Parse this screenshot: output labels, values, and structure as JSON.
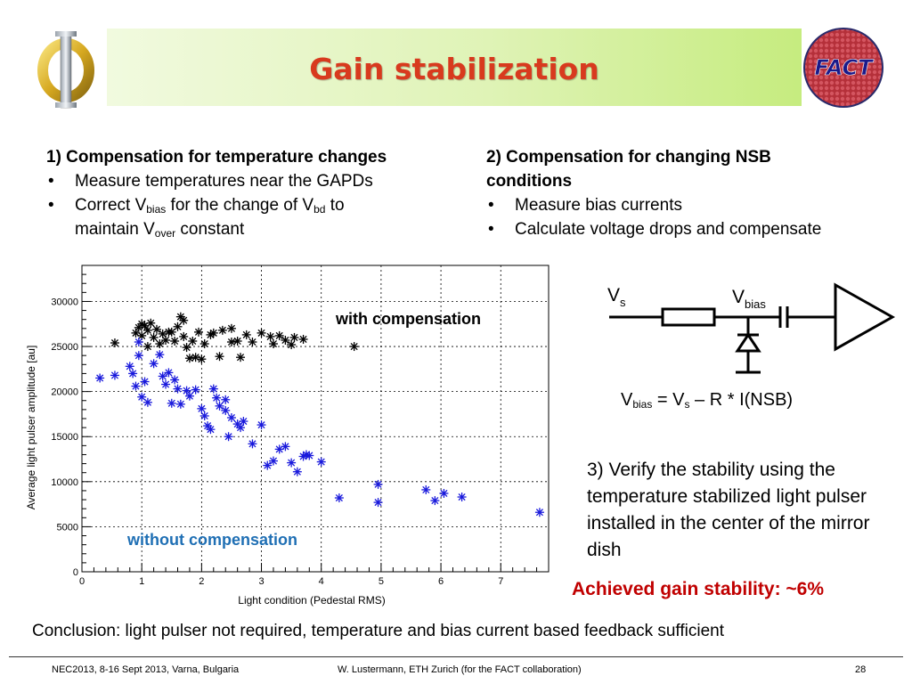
{
  "title": "Gain stabilization",
  "logos": {
    "left_symbol": "Φ",
    "right_text": "FACT"
  },
  "section1": {
    "heading": "1) Compensation for temperature changes",
    "bullet1": "Measure temperatures near the GAPDs",
    "bullet2_a": "Correct V",
    "bullet2_sub1": "bias",
    "bullet2_b": " for the change of V",
    "bullet2_sub2": "bd",
    "bullet2_c": " to",
    "bullet2_d": "maintain V",
    "bullet2_sub3": "over",
    "bullet2_e": " constant"
  },
  "section2": {
    "heading_line1": "2) Compensation for changing NSB",
    "heading_line2": "conditions",
    "bullet1": "Measure bias currents",
    "bullet2": "Calculate voltage drops and compensate"
  },
  "bullet_char": "•",
  "circuit": {
    "vs": "V",
    "vs_sub": "s",
    "vbias": "V",
    "vbias_sub": "bias"
  },
  "equation": {
    "lhs": "V",
    "lhs_sub": "bias",
    "mid": " = V",
    "mid_sub": "s",
    "rhs": " – R * I(NSB)"
  },
  "verify_text": "3) Verify the stability using the temperature stabilized light pulser installed in the center of the mirror dish",
  "achieved": {
    "label": "Achieved gain stability: ",
    "value": "~6%"
  },
  "conclusion": "Conclusion: light pulser not required, temperature and bias current based feedback sufficient",
  "footer": {
    "left": "NEC2013, 8-16 Sept 2013, Varna, Bulgaria",
    "center": "W. Lustermann, ETH Zurich (for the FACT collaboration)",
    "page": "28"
  },
  "colors": {
    "title": "#d83a1e",
    "with": "#000000",
    "without": "#1a1adc",
    "without_label": "#1f6fb4",
    "achieved": "#c00000"
  },
  "chart_data": {
    "type": "scatter",
    "xlabel": "Light condition (Pedestal RMS)",
    "ylabel": "Average light pulser amplitude [au]",
    "xlim": [
      0,
      7.8
    ],
    "ylim": [
      0,
      34000
    ],
    "x_ticks": [
      0,
      1,
      2,
      3,
      4,
      5,
      6,
      7
    ],
    "y_ticks": [
      0,
      5000,
      10000,
      15000,
      20000,
      25000,
      30000
    ],
    "grid": true,
    "series": [
      {
        "name": "with compensation",
        "points": [
          [
            0.55,
            25400
          ],
          [
            0.9,
            26500
          ],
          [
            0.95,
            27100
          ],
          [
            1.0,
            27500
          ],
          [
            1.0,
            26200
          ],
          [
            1.05,
            27300
          ],
          [
            1.1,
            25000
          ],
          [
            1.1,
            26800
          ],
          [
            1.15,
            27600
          ],
          [
            1.2,
            26000
          ],
          [
            1.25,
            26900
          ],
          [
            1.3,
            25300
          ],
          [
            1.35,
            26400
          ],
          [
            1.4,
            25700
          ],
          [
            1.45,
            26600
          ],
          [
            1.5,
            26600
          ],
          [
            1.55,
            25600
          ],
          [
            1.6,
            27200
          ],
          [
            1.65,
            28300
          ],
          [
            1.7,
            27900
          ],
          [
            1.7,
            26100
          ],
          [
            1.75,
            24900
          ],
          [
            1.8,
            23700
          ],
          [
            1.85,
            25600
          ],
          [
            1.9,
            23800
          ],
          [
            1.95,
            26600
          ],
          [
            2.0,
            23600
          ],
          [
            2.05,
            25300
          ],
          [
            2.15,
            26300
          ],
          [
            2.2,
            26500
          ],
          [
            2.3,
            23900
          ],
          [
            2.35,
            26800
          ],
          [
            2.5,
            25500
          ],
          [
            2.5,
            27000
          ],
          [
            2.6,
            25600
          ],
          [
            2.65,
            23800
          ],
          [
            2.75,
            26300
          ],
          [
            2.85,
            25500
          ],
          [
            3.0,
            26500
          ],
          [
            3.15,
            26100
          ],
          [
            3.2,
            25300
          ],
          [
            3.3,
            26200
          ],
          [
            3.4,
            25700
          ],
          [
            3.5,
            25200
          ],
          [
            3.55,
            26000
          ],
          [
            3.7,
            25800
          ],
          [
            4.55,
            25000
          ]
        ]
      },
      {
        "name": "without compensation",
        "points": [
          [
            0.3,
            21500
          ],
          [
            0.55,
            21800
          ],
          [
            0.8,
            22800
          ],
          [
            0.85,
            22000
          ],
          [
            0.9,
            20600
          ],
          [
            0.95,
            24000
          ],
          [
            0.95,
            25500
          ],
          [
            1.0,
            19400
          ],
          [
            1.05,
            21100
          ],
          [
            1.1,
            18800
          ],
          [
            1.2,
            23100
          ],
          [
            1.3,
            24100
          ],
          [
            1.35,
            21700
          ],
          [
            1.4,
            20800
          ],
          [
            1.45,
            22100
          ],
          [
            1.5,
            18700
          ],
          [
            1.55,
            21300
          ],
          [
            1.6,
            20300
          ],
          [
            1.65,
            18600
          ],
          [
            1.75,
            20100
          ],
          [
            1.8,
            19500
          ],
          [
            1.9,
            20200
          ],
          [
            2.0,
            18100
          ],
          [
            2.05,
            17300
          ],
          [
            2.1,
            16200
          ],
          [
            2.15,
            15800
          ],
          [
            2.2,
            20300
          ],
          [
            2.25,
            19300
          ],
          [
            2.3,
            18400
          ],
          [
            2.4,
            17900
          ],
          [
            2.4,
            19100
          ],
          [
            2.45,
            15000
          ],
          [
            2.5,
            17100
          ],
          [
            2.6,
            16400
          ],
          [
            2.65,
            16000
          ],
          [
            2.7,
            16700
          ],
          [
            2.85,
            14200
          ],
          [
            3.0,
            16300
          ],
          [
            3.1,
            11800
          ],
          [
            3.2,
            12300
          ],
          [
            3.3,
            13600
          ],
          [
            3.4,
            13900
          ],
          [
            3.5,
            12100
          ],
          [
            3.6,
            11100
          ],
          [
            3.7,
            12800
          ],
          [
            3.75,
            13000
          ],
          [
            3.8,
            12900
          ],
          [
            4.0,
            12200
          ],
          [
            4.3,
            8200
          ],
          [
            4.95,
            9700
          ],
          [
            4.95,
            7700
          ],
          [
            5.75,
            9100
          ],
          [
            5.9,
            7900
          ],
          [
            6.05,
            8700
          ],
          [
            6.35,
            8300
          ],
          [
            7.65,
            6600
          ]
        ]
      }
    ],
    "annotations": {
      "with": "with compensation",
      "without": "without compensation"
    }
  }
}
